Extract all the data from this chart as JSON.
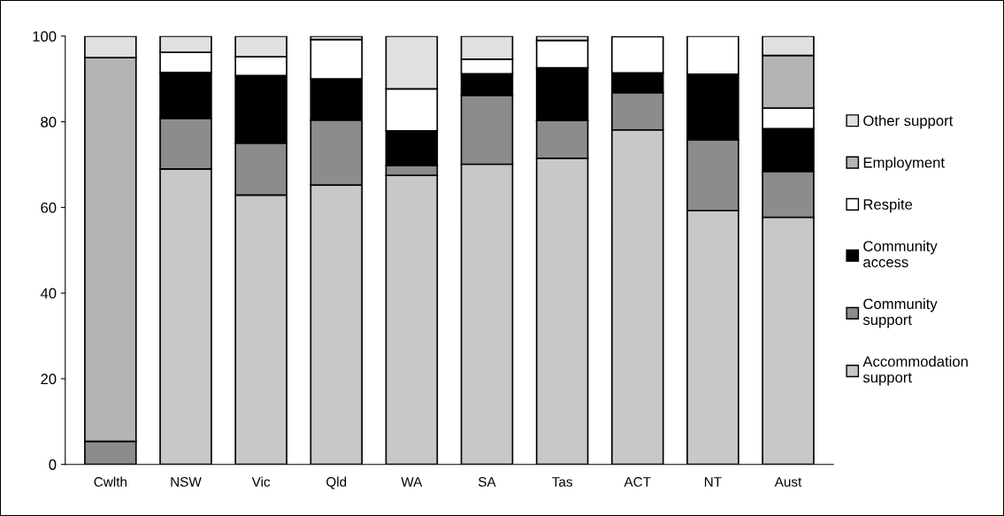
{
  "chart_data": {
    "type": "bar",
    "stacked": true,
    "categories": [
      "Cwlth",
      "NSW",
      "Vic",
      "Qld",
      "WA",
      "SA",
      "Tas",
      "ACT",
      "NT",
      "Aust"
    ],
    "series": [
      {
        "name": "Accommodation support",
        "color": "#c8c8c8",
        "values": [
          0,
          69,
          62.9,
          65.2,
          67.5,
          70.1,
          71.5,
          78.1,
          59.3,
          57.7
        ]
      },
      {
        "name": "Community support",
        "color": "#8c8c8c",
        "values": [
          5.4,
          11.8,
          12.1,
          15.2,
          2.3,
          16.1,
          8.8,
          8.7,
          16.5,
          10.7
        ]
      },
      {
        "name": "Community access",
        "color": "#000000",
        "values": [
          0,
          10.7,
          15.8,
          9.6,
          8.1,
          5.0,
          12.3,
          4.6,
          15.3,
          10.0
        ]
      },
      {
        "name": "Respite",
        "color": "#ffffff",
        "values": [
          0,
          4.7,
          4.4,
          9.2,
          9.8,
          3.4,
          6.4,
          8.5,
          8.9,
          4.8
        ]
      },
      {
        "name": "Employment",
        "color": "#b4b4b4",
        "values": [
          89.6,
          0,
          0,
          0,
          0,
          0,
          0,
          0,
          0,
          12.3
        ]
      },
      {
        "name": "Other support",
        "color": "#e0e0e0",
        "values": [
          5,
          3.8,
          4.8,
          0.8,
          12.3,
          5.4,
          1.0,
          0,
          0,
          4.5
        ]
      }
    ],
    "ylim": [
      0,
      100
    ],
    "yticks": [
      0,
      20,
      40,
      60,
      80,
      100
    ],
    "grid": false,
    "legend": "right"
  }
}
